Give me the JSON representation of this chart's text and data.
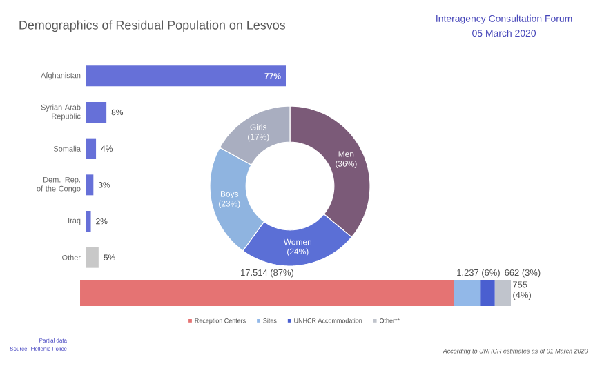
{
  "chart_data": [
    {
      "type": "bar",
      "orientation": "horizontal",
      "title": "Demographics of Residual Population on Lesvos",
      "categories": [
        "Afghanistan",
        "Syrian Arab Republic",
        "Somalia",
        "Dem. Rep. of the Congo",
        "Iraq",
        "Other"
      ],
      "values": [
        77,
        8,
        4,
        3,
        2,
        5
      ],
      "colors": [
        "#6670d8",
        "#6670d8",
        "#6670d8",
        "#6670d8",
        "#6670d8",
        "#c8c8c8"
      ],
      "value_labels": [
        "77%",
        "8%",
        "4%",
        "3%",
        "2%",
        "5%"
      ],
      "tick_labels": "y",
      "annotations": [
        "Interagency Consultation Forum",
        "05 March 2020",
        "Partial data",
        "Source: Hellenic Police"
      ]
    },
    {
      "type": "donut",
      "categories": [
        "Men",
        "Women",
        "Boys",
        "Girls"
      ],
      "values": [
        36,
        24,
        23,
        17
      ],
      "colors": [
        "#7b5a78",
        "#5b6fd6",
        "#8fb4e0",
        "#a9aec0"
      ],
      "value_labels": [
        "(36%)",
        "(24%)",
        "(23%)",
        "(17%)"
      ]
    },
    {
      "type": "bar",
      "orientation": "horizontal",
      "stacked": true,
      "categories": [
        null
      ],
      "legend": "bottom",
      "series": [
        {
          "name": "Reception Centers",
          "color": "#e57373",
          "values": [
            17514
          ],
          "value_labels": [
            "17.514 (87%)"
          ]
        },
        {
          "name": "Sites",
          "color": "#92b8e8",
          "values": [
            1237
          ],
          "value_labels": [
            "1.237 (6%)"
          ]
        },
        {
          "name": "UNHCR Accommodation",
          "color": "#4a5fd0",
          "values": [
            662
          ],
          "value_labels": [
            "662 (3%)"
          ]
        },
        {
          "name": "Other**",
          "color": "#c0c4cc",
          "values": [
            755
          ],
          "value_labels": [
            "755 (4%)"
          ]
        }
      ],
      "annotations": [
        "According to UNHCR estimates as of 01 March 2020"
      ]
    }
  ]
}
